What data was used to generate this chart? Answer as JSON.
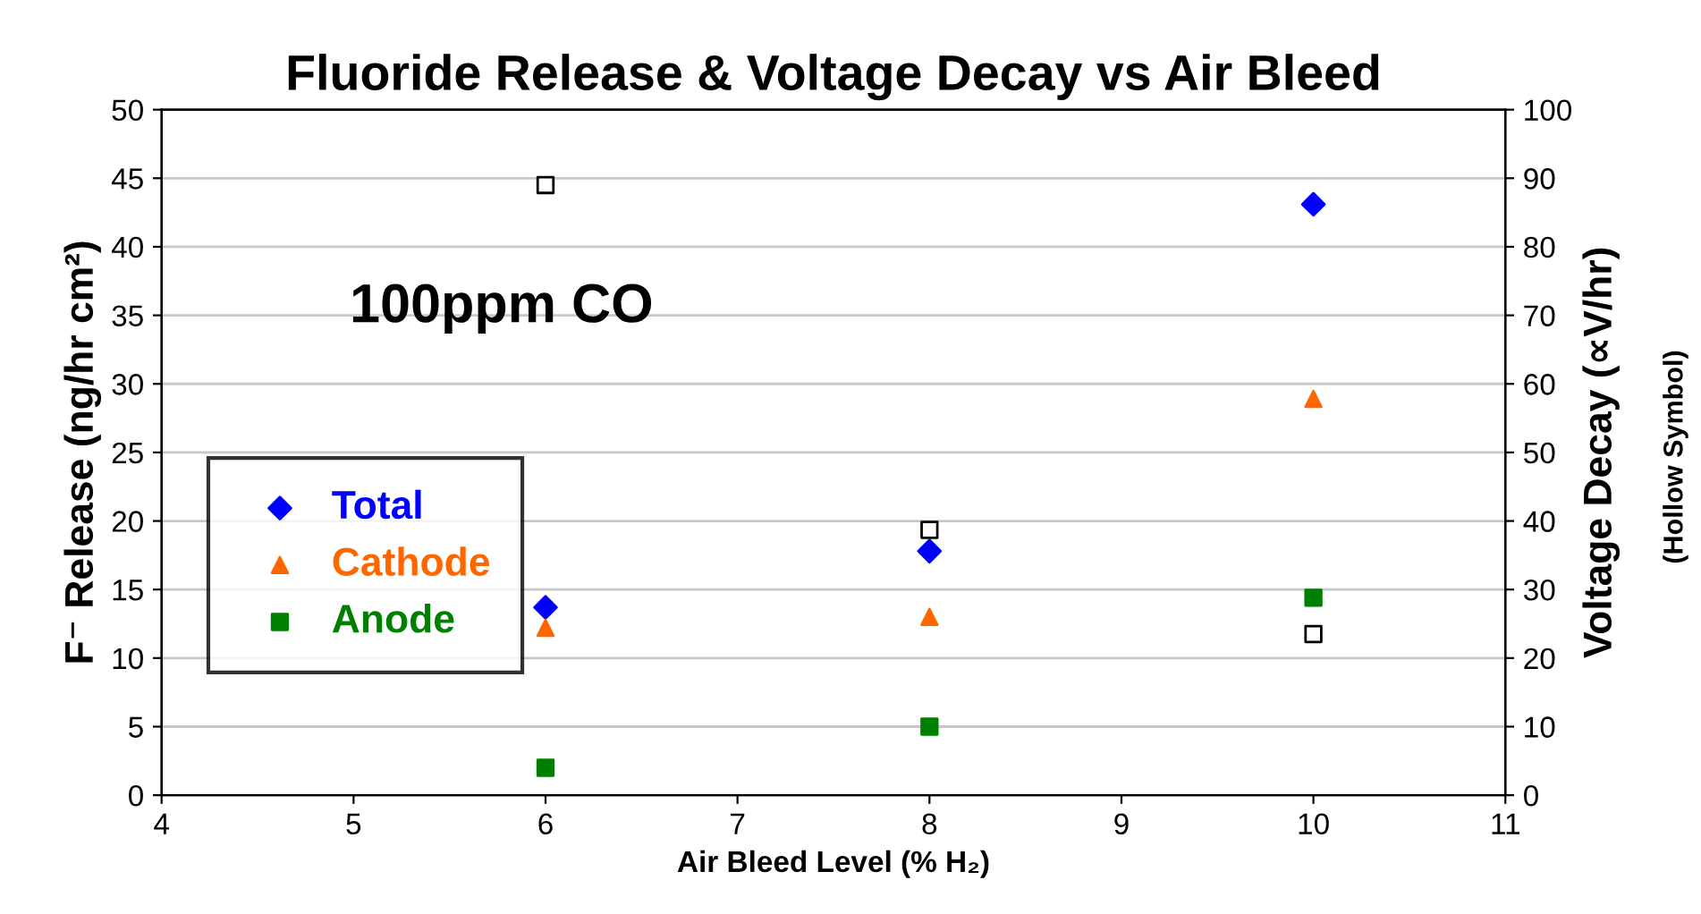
{
  "chart_data": {
    "type": "scatter",
    "title": "Fluoride Release & Voltage Decay vs Air Bleed",
    "xlabel": "Air Bleed Level (% H₂)",
    "ylabel": "F⁻ Release (ng/hr cm²)",
    "y2label": "Voltage Decay (∝V/hr)",
    "annotations": [
      "100ppm CO",
      "(Hollow Symbol)"
    ],
    "series": [
      {
        "name": "Total",
        "color": "#0000ff",
        "marker": "diamond",
        "x": [
          6,
          8,
          10
        ],
        "values": [
          13.7,
          17.8,
          43.1
        ]
      },
      {
        "name": "Cathode",
        "color": "#ff6600",
        "marker": "triangle",
        "x": [
          6,
          8,
          10
        ],
        "values": [
          12.2,
          13.0,
          28.9
        ]
      },
      {
        "name": "Anode",
        "color": "#008000",
        "marker": "square",
        "x": [
          6,
          8,
          10
        ],
        "values": [
          2.0,
          5.0,
          14.4
        ]
      },
      {
        "color": "#ffffff",
        "marker": "square",
        "axis": "y2",
        "x": [
          6,
          8,
          10
        ],
        "values": [
          89.0,
          38.7,
          23.5
        ]
      }
    ],
    "xlim": [
      4,
      11
    ],
    "xticks": [
      4,
      5,
      6,
      7,
      8,
      9,
      10,
      11
    ],
    "ylim": [
      0,
      50
    ],
    "yticks": [
      0,
      5,
      10,
      15,
      20,
      25,
      30,
      35,
      40,
      45,
      50
    ],
    "y2lim": [
      0,
      100
    ],
    "y2ticks": [
      0,
      10,
      20,
      30,
      40,
      50,
      60,
      70,
      80,
      90,
      100
    ],
    "grid": "y",
    "legend": "bottom left"
  }
}
